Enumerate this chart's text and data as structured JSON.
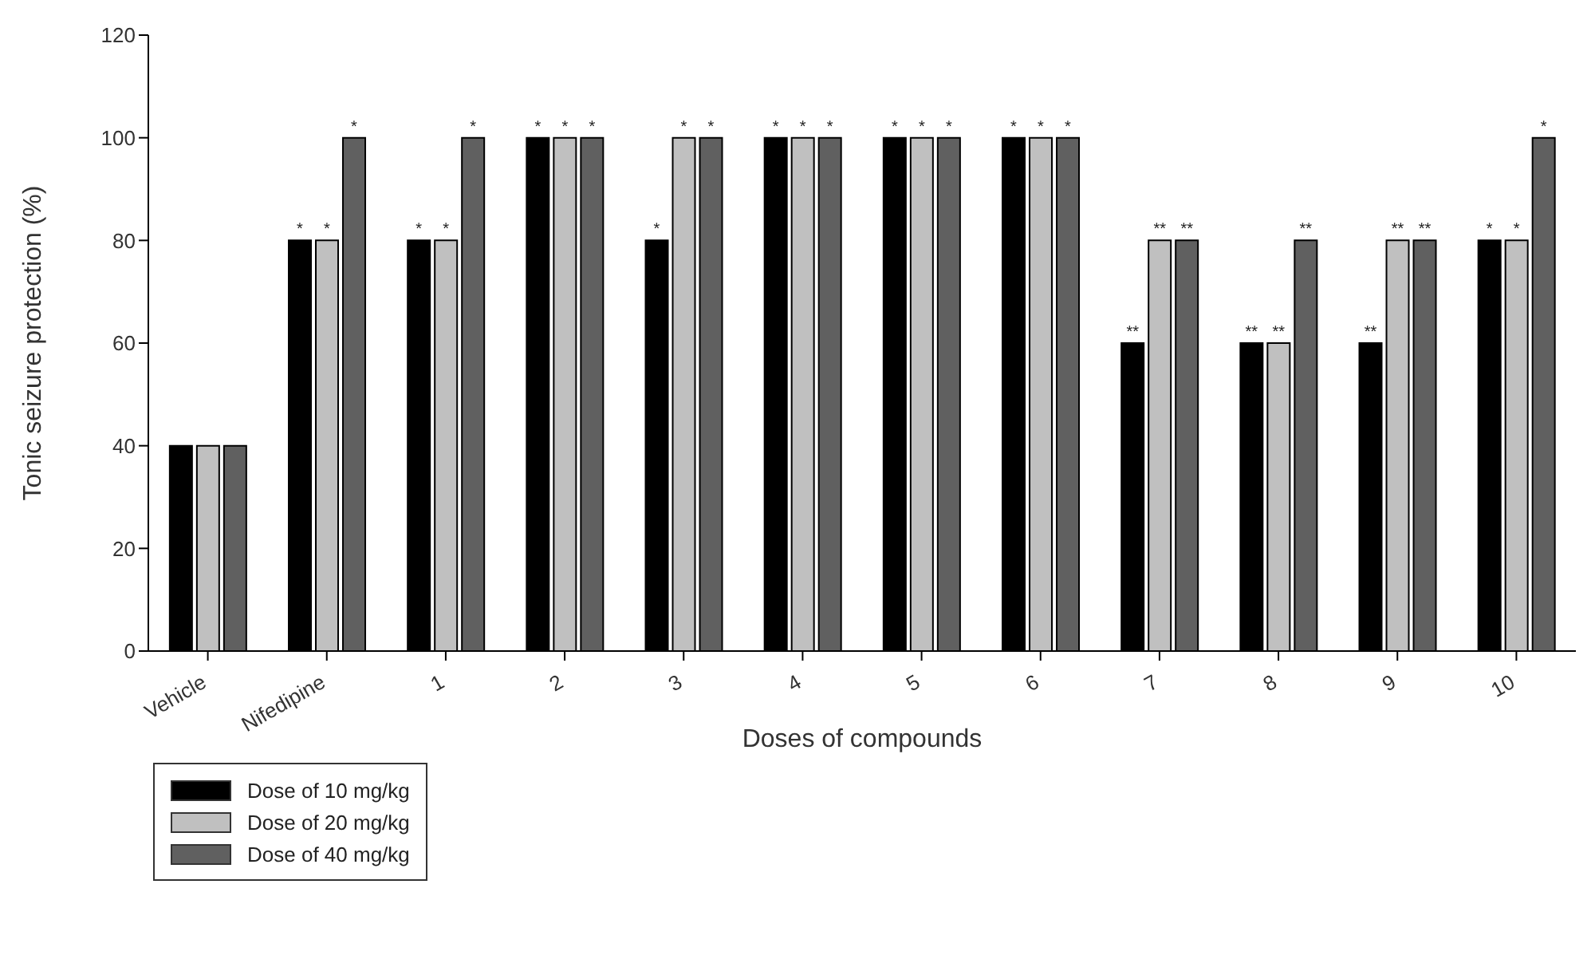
{
  "chart_data": {
    "type": "bar",
    "xlabel": "Doses of compounds",
    "ylabel": "Tonic seizure protection (%)",
    "categories": [
      "Vehicle",
      "Nifedipine",
      "1",
      "2",
      "3",
      "4",
      "5",
      "6",
      "7",
      "8",
      "9",
      "10"
    ],
    "series": [
      {
        "name": "Dose of 10 mg/kg",
        "color": "#000000",
        "values": [
          40,
          80,
          80,
          100,
          80,
          100,
          100,
          100,
          60,
          60,
          60,
          80
        ],
        "value_labels": [
          null,
          "*",
          "*",
          "*",
          "*",
          "*",
          "*",
          "*",
          "**",
          "**",
          "**",
          "*"
        ]
      },
      {
        "name": "Dose of 20 mg/kg",
        "color": "#c0c0c0",
        "values": [
          40,
          80,
          80,
          100,
          100,
          100,
          100,
          100,
          80,
          60,
          80,
          80
        ],
        "value_labels": [
          null,
          "*",
          "*",
          "*",
          "*",
          "*",
          "*",
          "*",
          "**",
          "**",
          "**",
          "*"
        ]
      },
      {
        "name": "Dose of 40 mg/kg",
        "color": "#606060",
        "values": [
          40,
          100,
          100,
          100,
          100,
          100,
          100,
          100,
          80,
          80,
          80,
          100
        ],
        "value_labels": [
          null,
          "*",
          "*",
          "*",
          "*",
          "*",
          "*",
          "*",
          "**",
          "**",
          "**",
          "*"
        ]
      }
    ],
    "ylim": [
      0,
      120
    ],
    "yticks": [
      0,
      20,
      40,
      60,
      80,
      100,
      120
    ],
    "grid": false,
    "legend": "bottom left"
  }
}
